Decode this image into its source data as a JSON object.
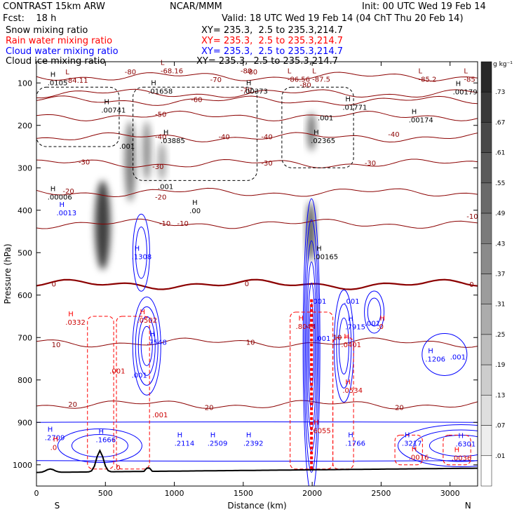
{
  "header": {
    "model": "CONTRAST 15km ARW",
    "fcst": "Fcst:    18 h",
    "org": "NCAR/MMM",
    "init": "Init: 00 UTC Wed 19 Feb 14",
    "valid": "Valid: 18 UTC Wed 19 Feb 14 (04 ChT Thu 20 Feb 14)"
  },
  "legend": [
    {
      "label": "Snow mixing ratio",
      "xy": "XY= 235.3,  2.5 to 235.3,214.7",
      "color": "#000000"
    },
    {
      "label": "Rain water mixing ratio",
      "xy": "XY= 235.3,  2.5 to 235.3,214.7",
      "color": "#ff0000"
    },
    {
      "label": "Cloud water mixing ratio",
      "xy": "XY= 235.3,  2.5 to 235.3,214.7",
      "color": "#0000ff"
    },
    {
      "label": "Cloud ice mixing ratio",
      "xy": "XY= 235.3,  2.5 to 235.3,214.7",
      "color": "#000000"
    }
  ],
  "chart_data": {
    "type": "cross-section",
    "xlabel": "Distance (km)",
    "ylabel": "Pressure (hPa)",
    "x_ticks": [
      0,
      500,
      1000,
      1500,
      2000,
      2500,
      3000
    ],
    "y_ticks": [
      100,
      200,
      300,
      400,
      500,
      600,
      700,
      800,
      900,
      1000
    ],
    "xlim": [
      0,
      3200
    ],
    "ylim": [
      1050,
      50
    ],
    "left_end_label": "S",
    "right_end_label": "N",
    "colorbar": {
      "unit": "g kg⁻¹",
      "labels": [
        ".73",
        ".67",
        ".61",
        ".55",
        ".49",
        ".43",
        ".37",
        ".31",
        ".25",
        ".19",
        ".13",
        ".07",
        ".01"
      ]
    },
    "temperature_contours": [
      {
        "value": -80,
        "p": 85,
        "color": "#8b0000"
      },
      {
        "value": -70,
        "p": 125,
        "color": "#8b0000"
      },
      {
        "value": -60,
        "p": 142,
        "color": "#8b0000"
      },
      {
        "value": -50,
        "p": 178,
        "color": "#8b0000"
      },
      {
        "value": -40,
        "p": 228,
        "color": "#8b0000"
      },
      {
        "value": -30,
        "p": 290,
        "color": "#8b0000"
      },
      {
        "value": -20,
        "p": 358,
        "color": "#8b0000"
      },
      {
        "value": -10,
        "p": 432,
        "color": "#8b0000"
      },
      {
        "value": 0,
        "p": 575,
        "color": "#8b0000",
        "bold": true
      },
      {
        "value": 10,
        "p": 712,
        "color": "#8b0000"
      },
      {
        "value": 20,
        "p": 858,
        "color": "#8b0000"
      }
    ],
    "temperature_minima": [
      {
        "label": "L",
        "value": "-84.11",
        "x": 210,
        "p": 95
      },
      {
        "label": "L",
        "value": "-68.16",
        "x": 900,
        "p": 72
      },
      {
        "label": "L",
        "value": "-86.56",
        "x": 1820,
        "p": 92
      },
      {
        "label": "L",
        "value": "-87.5",
        "x": 2000,
        "p": 92
      },
      {
        "label": "L",
        "value": "-85.2",
        "x": 2770,
        "p": 92
      },
      {
        "label": "L",
        "value": "-85",
        "x": 3100,
        "p": 92
      }
    ],
    "contour_labels": [
      {
        "text": "-80",
        "x": 640,
        "p": 75
      },
      {
        "text": "-80",
        "x": 1520,
        "p": 75
      },
      {
        "text": "-80",
        "x": 1480,
        "p": 72
      },
      {
        "text": "-80",
        "x": 1910,
        "p": 105
      },
      {
        "text": "-70",
        "x": 1480,
        "p": 118
      },
      {
        "text": "-70",
        "x": 1260,
        "p": 93
      },
      {
        "text": "-60",
        "x": 1120,
        "p": 140
      },
      {
        "text": "-50",
        "x": 860,
        "p": 175
      },
      {
        "text": "-40",
        "x": 860,
        "p": 228
      },
      {
        "text": "-40",
        "x": 1320,
        "p": 228
      },
      {
        "text": "-40",
        "x": 1630,
        "p": 228
      },
      {
        "text": "-40",
        "x": 2550,
        "p": 222
      },
      {
        "text": "-30",
        "x": 305,
        "p": 287
      },
      {
        "text": "-30",
        "x": 840,
        "p": 298
      },
      {
        "text": "-30",
        "x": 1630,
        "p": 290
      },
      {
        "text": "-30",
        "x": 2380,
        "p": 290
      },
      {
        "text": "-20",
        "x": 190,
        "p": 356
      },
      {
        "text": "-20",
        "x": 860,
        "p": 370
      },
      {
        "text": "-10",
        "x": 890,
        "p": 432
      },
      {
        "text": "-10",
        "x": 1020,
        "p": 432
      },
      {
        "text": "-10",
        "x": 3120,
        "p": 415
      },
      {
        "text": "0",
        "x": 110,
        "p": 575
      },
      {
        "text": "0",
        "x": 1510,
        "p": 574
      },
      {
        "text": "0",
        "x": 3140,
        "p": 576
      },
      {
        "text": "10",
        "x": 110,
        "p": 718
      },
      {
        "text": "10",
        "x": 1520,
        "p": 712
      },
      {
        "text": "10",
        "x": 2150,
        "p": 700
      },
      {
        "text": "20",
        "x": 230,
        "p": 858
      },
      {
        "text": "20",
        "x": 1220,
        "p": 866
      },
      {
        "text": "20",
        "x": 2600,
        "p": 866
      }
    ],
    "black_maxima": [
      {
        "value": ".0105",
        "x": 80,
        "p": 100
      },
      {
        "value": ".01658",
        "x": 810,
        "p": 120
      },
      {
        "value": ".00373",
        "x": 1500,
        "p": 120
      },
      {
        "value": ".00179",
        "x": 3020,
        "p": 122
      },
      {
        "value": ".00741",
        "x": 470,
        "p": 165
      },
      {
        "value": ".01771",
        "x": 2220,
        "p": 158
      },
      {
        "value": ".00174",
        "x": 2700,
        "p": 188
      },
      {
        "value": ".02365",
        "x": 1990,
        "p": 237
      },
      {
        "value": ".03885",
        "x": 900,
        "p": 237
      },
      {
        "value": ".00006",
        "x": 80,
        "p": 370
      },
      {
        "value": ".00",
        "x": 1110,
        "p": 402
      },
      {
        "value": ".00165",
        "x": 2010,
        "p": 510
      }
    ],
    "blue_maxima": [
      {
        "value": ".0013",
        "x": 145,
        "p": 407
      },
      {
        "value": ".1308",
        "x": 690,
        "p": 510
      },
      {
        "value": ".7548",
        "x": 800,
        "p": 712
      },
      {
        "value": ".7915",
        "x": 2240,
        "p": 676
      },
      {
        "value": ".1206",
        "x": 2820,
        "p": 752
      },
      {
        "value": ".2709",
        "x": 60,
        "p": 937
      },
      {
        "value": ".1666",
        "x": 430,
        "p": 942
      },
      {
        "value": ".2114",
        "x": 1000,
        "p": 950
      },
      {
        "value": ".2509",
        "x": 1240,
        "p": 950
      },
      {
        "value": ".2392",
        "x": 1500,
        "p": 950
      },
      {
        "value": ".1766",
        "x": 2240,
        "p": 950
      },
      {
        "value": ".3217",
        "x": 2650,
        "p": 950
      },
      {
        "value": ".6301",
        "x": 3040,
        "p": 952
      }
    ],
    "red_maxima": [
      {
        "value": ".0332",
        "x": 210,
        "p": 665
      },
      {
        "value": ".0502",
        "x": 730,
        "p": 660
      },
      {
        "value": ".8044",
        "x": 1880,
        "p": 675
      },
      {
        "value": ".0",
        "x": 2470,
        "p": 675
      },
      {
        "value": ".0401",
        "x": 2210,
        "p": 718
      },
      {
        "value": ".0534",
        "x": 2220,
        "p": 825
      },
      {
        "value": ".0",
        "x": 100,
        "p": 960
      },
      {
        "value": ".0016",
        "x": 2700,
        "p": 983
      },
      {
        "value": ".0036",
        "x": 3010,
        "p": 985
      },
      {
        "value": ".6055",
        "x": 1990,
        "p": 920
      }
    ],
    "blue_contour_labels": [
      {
        "text": ".001",
        "x": 1990,
        "p": 620
      },
      {
        "text": ".001",
        "x": 2230,
        "p": 620
      },
      {
        "text": ".001",
        "x": 2380,
        "p": 672
      },
      {
        "text": ".001",
        "x": 2020,
        "p": 708
      },
      {
        "text": ".001",
        "x": 690,
        "p": 795
      },
      {
        "text": ".001",
        "x": 3000,
        "p": 752
      }
    ],
    "red_contour_labels": [
      {
        "text": ".001",
        "x": 530,
        "p": 785
      },
      {
        "text": ".001",
        "x": 840,
        "p": 888
      },
      {
        "text": ".0",
        "x": 560,
        "p": 1012
      }
    ],
    "black_contour_labels": [
      {
        "text": ".001",
        "x": 600,
        "p": 255
      },
      {
        "text": ".001",
        "x": 2040,
        "p": 188
      },
      {
        "text": ".001",
        "x": 880,
        "p": 350
      }
    ]
  }
}
